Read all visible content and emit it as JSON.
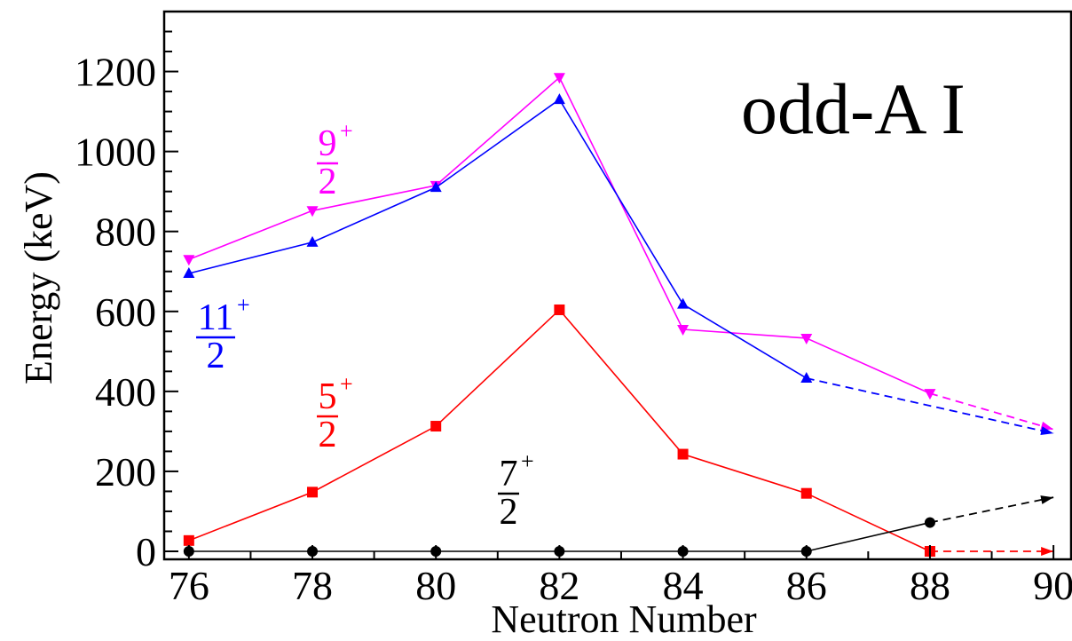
{
  "chart_data": {
    "type": "line",
    "title": "odd-A I",
    "xlabel": "Neutron Number",
    "ylabel": "Energy (keV)",
    "xlim": [
      75.6,
      90.3
    ],
    "ylim": [
      -20,
      1350
    ],
    "x_ticks": [
      "76",
      "78",
      "80",
      "82",
      "84",
      "86",
      "88",
      "90"
    ],
    "y_ticks": [
      "0",
      "200",
      "400",
      "600",
      "800",
      "1000",
      "1200"
    ],
    "x_tick_values": [
      76,
      78,
      80,
      82,
      84,
      86,
      88,
      90
    ],
    "y_tick_values": [
      0,
      200,
      400,
      600,
      800,
      1000,
      1200
    ],
    "series": [
      {
        "label_num": "9",
        "label_sup": "+",
        "label_den": "2",
        "color": "#ff00ff",
        "marker": "triangle-down",
        "x": [
          76,
          78,
          80,
          82,
          84,
          86,
          88
        ],
        "y": [
          730,
          852,
          915,
          1185,
          555,
          533,
          395
        ],
        "extrapolated": {
          "x": [
            88,
            90
          ],
          "y": [
            395,
            305
          ]
        }
      },
      {
        "label_num": "11",
        "label_sup": "+",
        "label_den": "2",
        "color": "#0000ff",
        "marker": "triangle-up",
        "x": [
          76,
          78,
          80,
          82,
          84,
          86
        ],
        "y": [
          695,
          773,
          910,
          1130,
          618,
          433
        ],
        "extrapolated": {
          "x": [
            86,
            90
          ],
          "y": [
            433,
            295
          ]
        }
      },
      {
        "label_num": "5",
        "label_sup": "+",
        "label_den": "2",
        "color": "#ff0000",
        "marker": "square",
        "x": [
          76,
          78,
          80,
          82,
          84,
          86,
          88
        ],
        "y": [
          27,
          148,
          313,
          604,
          243,
          145,
          0
        ],
        "extrapolated": {
          "x": [
            88,
            90
          ],
          "y": [
            0,
            0
          ]
        }
      },
      {
        "label_num": "7",
        "label_sup": "+",
        "label_den": "2",
        "color": "#000000",
        "marker": "circle",
        "x": [
          76,
          78,
          80,
          82,
          84,
          86,
          88
        ],
        "y": [
          0,
          0,
          0,
          0,
          0,
          0,
          72
        ],
        "extrapolated": {
          "x": [
            88,
            90
          ],
          "y": [
            72,
            135
          ]
        }
      }
    ]
  }
}
